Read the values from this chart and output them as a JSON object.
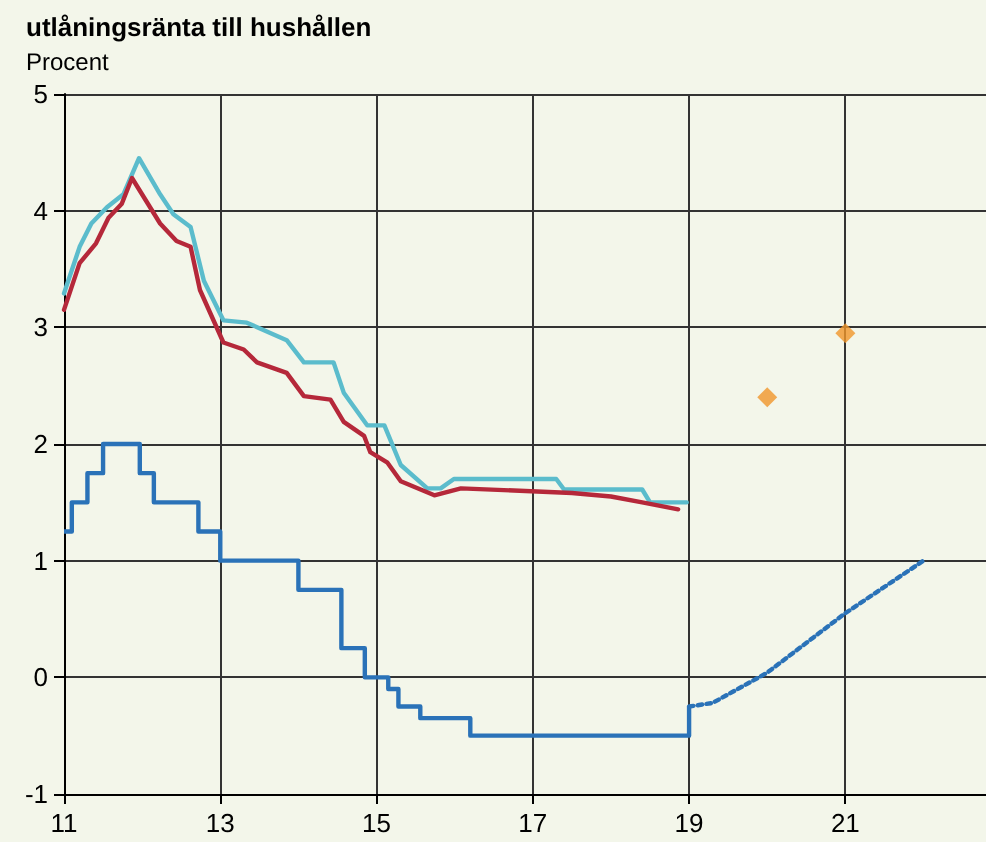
{
  "chart_data": {
    "type": "line",
    "title": "utlåningsränta till hushållen",
    "ylabel": "Procent",
    "xlim": [
      11,
      22.8
    ],
    "xticks": [
      11,
      13,
      15,
      17,
      19,
      21
    ],
    "ylim": [
      -1,
      5
    ],
    "yticks": [
      -1,
      0,
      1,
      2,
      3,
      4,
      5
    ],
    "grid": true,
    "series": [
      {
        "type": "step",
        "color": "#2a72b8",
        "x": [
          11.0,
          11.1,
          11.3,
          11.5,
          11.97,
          12.15,
          12.72,
          13.0,
          14.0,
          14.55,
          14.85,
          15.15,
          15.28,
          15.56,
          16.2,
          19.0
        ],
        "values": [
          1.25,
          1.5,
          1.75,
          2.0,
          1.75,
          1.5,
          1.25,
          1.0,
          0.75,
          0.25,
          0,
          -0.1,
          -0.25,
          -0.35,
          -0.5,
          -0.25
        ]
      },
      {
        "color": "#2a72b8",
        "line_style": "dotted",
        "x": [
          19.0,
          19.3,
          20.0,
          21.0,
          22.0
        ],
        "values": [
          -0.25,
          -0.22,
          0.04,
          0.55,
          1.0
        ]
      },
      {
        "color": "#5bbccc",
        "x": [
          11.0,
          11.2,
          11.35,
          11.55,
          11.76,
          11.96,
          12.23,
          12.4,
          12.62,
          12.79,
          13.04,
          13.34,
          13.85,
          14.07,
          14.45,
          14.58,
          14.88,
          15.1,
          15.31,
          15.65,
          15.82,
          15.99,
          17.3,
          17.4,
          18.4,
          18.5,
          18.97
        ],
        "values": [
          3.29,
          3.69,
          3.89,
          4.03,
          4.14,
          4.45,
          4.14,
          3.97,
          3.86,
          3.4,
          3.06,
          3.04,
          2.89,
          2.7,
          2.7,
          2.44,
          2.16,
          2.16,
          1.82,
          1.62,
          1.62,
          1.7,
          1.7,
          1.61,
          1.61,
          1.5,
          1.5
        ]
      },
      {
        "color": "#b5283a",
        "x": [
          11.0,
          11.2,
          11.41,
          11.57,
          11.74,
          11.87,
          12.23,
          12.44,
          12.62,
          12.74,
          13.04,
          13.3,
          13.47,
          13.85,
          14.07,
          14.41,
          14.58,
          14.84,
          14.92,
          15.14,
          15.31,
          15.74,
          16.08,
          17.5,
          18.0,
          18.4,
          18.86
        ],
        "values": [
          3.15,
          3.55,
          3.72,
          3.94,
          4.06,
          4.28,
          3.89,
          3.74,
          3.69,
          3.32,
          2.87,
          2.81,
          2.7,
          2.61,
          2.41,
          2.38,
          2.19,
          2.07,
          1.93,
          1.84,
          1.68,
          1.56,
          1.62,
          1.58,
          1.55,
          1.5,
          1.44
        ]
      },
      {
        "type": "scatter",
        "color": "#f0962a",
        "marker": "diamond",
        "x": [
          20.0,
          21.0
        ],
        "values": [
          2.4,
          2.95
        ]
      }
    ]
  }
}
